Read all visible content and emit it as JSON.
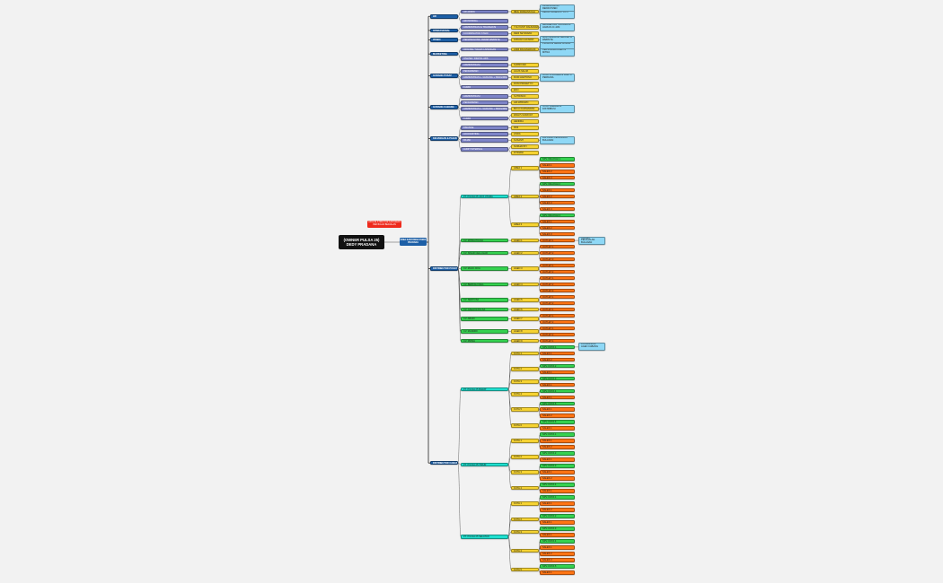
{
  "root": {
    "title": "(OWNER PULSA 25) DEDY PRADANA"
  },
  "area": {
    "label": "AREA KARYAWAN PORIA PRADANA"
  },
  "notice": {
    "label": "UPDATE STRUKTUR KARYAWAN PER BULAN BERJALAN"
  },
  "colors": {
    "dept": "#1d5fa6",
    "role": "#7d84c8",
    "person": "#f6d332",
    "note": "#8fd8f6",
    "team": "#20e0cf",
    "group": "#35d150",
    "lead": "#35d150",
    "staff": "#ff7414",
    "line": "#555555",
    "trunk": "#222222"
  },
  "tree": [
    {
      "t": "dept",
      "l": "HR",
      "c": [
        {
          "t": "role",
          "l": "HR ADMIN",
          "c": [
            {
              "t": "person",
              "l": "IBNU FIRMANSYAH",
              "c": [
                {
                  "t": "note",
                  "l": "UPDATE DATA / REKRUTMEN"
                },
                {
                  "t": "note",
                  "l": "REKAP ABSENSI / CUTI"
                }
              ]
            }
          ]
        },
        {
          "t": "role",
          "l": "HR PAYROLL"
        }
      ]
    },
    {
      "t": "dept",
      "l": "OPERASIONAL",
      "c": [
        {
          "t": "role",
          "l": "ADMINISTRASI & TRANSAKSI",
          "c": [
            {
              "t": "person",
              "l": "YULIYANTI RAHMAWATI",
              "c": [
                {
                  "t": "note",
                  "l": "MENGELOLA TRANSAKSI HARIAN 24 JAM"
                }
              ]
            }
          ]
        },
        {
          "t": "role",
          "l": "KOORDINATOR STAFF",
          "c": [
            {
              "t": "person",
              "l": "DEDI SETIAWAN"
            }
          ]
        }
      ]
    },
    {
      "t": "dept",
      "l": "IT/SEO",
      "c": [
        {
          "t": "role",
          "l": "PENANGGUNG JAWAB WEBSITE",
          "c": [
            {
              "t": "person",
              "l": "FARHAN ALFARIZI",
              "c": [
                {
                  "t": "note",
                  "l": "MAINTENANCE SERVER & WEBSITE"
                }
              ]
            }
          ]
        }
      ]
    },
    {
      "t": "dept",
      "l": "MARKETING",
      "c": [
        {
          "t": "role",
          "l": "OFFLINE / SALES LAPANGAN",
          "c": [
            {
              "t": "person",
              "l": "ANDI RACHMADANI",
              "c": [
                {
                  "t": "note",
                  "l": "PROMOSI MEDIA SOSIAL"
                },
                {
                  "t": "note",
                  "l": "KERJASAMA AGEN & MITRA"
                }
              ]
            }
          ]
        },
        {
          "t": "role",
          "l": "ONLINE / DIGITAL ADS"
        }
      ]
    },
    {
      "t": "dept",
      "l": "GUDANG PUSAT",
      "c": [
        {
          "t": "role",
          "l": "ADMINISTRASI",
          "c": [
            {
              "t": "person",
              "l": "SUPRIYADI"
            }
          ]
        },
        {
          "t": "role",
          "l": "PENGIRIMAN",
          "c": [
            {
              "t": "person",
              "l": "AGUS SALIM"
            }
          ]
        },
        {
          "t": "role",
          "l": "ADMINISTRASI + GUDANG + PENGIRIMAN",
          "c": [
            {
              "t": "person",
              "l": "RUDI HARTONO",
              "c": [
                {
                  "t": "note",
                  "l": "STOK VOUCHER & KARTU PERDANA"
                }
              ]
            }
          ]
        },
        {
          "t": "role",
          "l": "KURIR",
          "c": [
            {
              "t": "person",
              "l": "DONI PRASETYO"
            },
            {
              "t": "person",
              "l": "EKO"
            }
          ]
        }
      ]
    },
    {
      "t": "dept",
      "l": "GUDANG CABANG",
      "c": [
        {
          "t": "role",
          "l": "ADMINISTRASI",
          "c": [
            {
              "t": "person",
              "l": "SUTRISNO"
            }
          ]
        },
        {
          "t": "role",
          "l": "PENGIRIMAN",
          "c": [
            {
              "t": "person",
              "l": "ARI WIBOWO"
            }
          ]
        },
        {
          "t": "role",
          "l": "ADMINISTRASI + GUDANG + PENGIRIMAN",
          "c": [
            {
              "t": "person",
              "l": "BAYU KURNIAWAN",
              "c": [
                {
                  "t": "note",
                  "l": "STOK CABANG & DISTRIBUSI"
                }
              ]
            }
          ]
        },
        {
          "t": "role",
          "l": "KURIR",
          "c": [
            {
              "t": "person",
              "l": "WAHYU HIDAYAT"
            },
            {
              "t": "person",
              "l": "HENDRA"
            }
          ]
        }
      ]
    },
    {
      "t": "dept",
      "l": "KEUANGAN & PAJAK",
      "c": [
        {
          "t": "role",
          "l": "FINANCE",
          "c": [
            {
              "t": "person",
              "l": "RINI"
            }
          ]
        },
        {
          "t": "role",
          "l": "ACCOUNTING",
          "c": [
            {
              "t": "person",
              "l": "LINDA"
            }
          ]
        },
        {
          "t": "role",
          "l": "PAJAK",
          "c": [
            {
              "t": "person",
              "l": "SUSANTI",
              "c": [
                {
                  "t": "note",
                  "l": "LAPORAN KEUANGAN BULANAN"
                }
              ]
            }
          ]
        },
        {
          "t": "role",
          "l": "AUDIT INTERNAL",
          "c": [
            {
              "t": "person",
              "l": "NURHAYATI"
            },
            {
              "t": "person",
              "l": "FITRIANI"
            }
          ]
        }
      ]
    },
    {
      "t": "dept",
      "l": "DISTRIBUTOR PUSAT",
      "c": [
        {
          "t": "team",
          "l": "PT. PULSA 25 JAYA UTAMA",
          "c": [
            {
              "t": "person",
              "l": "AREA 1",
              "c": [
                {
                  "t": "lead",
                  "l": "SPV. WILAYAH 1"
                },
                {
                  "t": "staff",
                  "l": "SALES 1"
                },
                {
                  "t": "staff",
                  "l": "SALES 2"
                },
                {
                  "t": "staff",
                  "l": "SALES 3"
                }
              ]
            },
            {
              "t": "person",
              "l": "AREA 2",
              "c": [
                {
                  "t": "lead",
                  "l": "SPV. WILAYAH 2"
                },
                {
                  "t": "staff",
                  "l": "SALES 1"
                },
                {
                  "t": "staff",
                  "l": "SALES 2"
                },
                {
                  "t": "staff",
                  "l": "SALES 3"
                },
                {
                  "t": "staff",
                  "l": "SALES 4"
                }
              ]
            },
            {
              "t": "person",
              "l": "AREA 3",
              "c": [
                {
                  "t": "lead",
                  "l": "SPV. WILAYAH 3"
                },
                {
                  "t": "staff",
                  "l": "SALES 1"
                },
                {
                  "t": "staff",
                  "l": "SALES 2"
                },
                {
                  "t": "staff",
                  "l": "SALES 3"
                }
              ]
            }
          ]
        },
        {
          "t": "group",
          "l": "CV. MITRA PULSA",
          "c": [
            {
              "t": "person",
              "l": "AGEN 1",
              "c": [
                {
                  "t": "staff",
                  "l": "OUTLET 1",
                  "c": [
                    {
                      "t": "note",
                      "l": "TARGET PENJUALAN BULANAN"
                    }
                  ]
                }
              ]
            }
          ]
        },
        {
          "t": "group",
          "l": "CV. SINAR CELLULAR",
          "c": [
            {
              "t": "person",
              "l": "AGEN 2",
              "c": [
                {
                  "t": "staff",
                  "l": "OUTLET 1"
                },
                {
                  "t": "staff",
                  "l": "OUTLET 2"
                },
                {
                  "t": "staff",
                  "l": "OUTLET 3"
                }
              ]
            }
          ]
        },
        {
          "t": "group",
          "l": "CV. MAJU JAYA",
          "c": [
            {
              "t": "person",
              "l": "AGEN 3",
              "c": [
                {
                  "t": "staff",
                  "l": "OUTLET 1"
                },
                {
                  "t": "staff",
                  "l": "OUTLET 2"
                }
              ]
            }
          ]
        },
        {
          "t": "group",
          "l": "CV. BERKAH CELL",
          "c": [
            {
              "t": "person",
              "l": "AGEN 4",
              "c": [
                {
                  "t": "staff",
                  "l": "OUTLET 1"
                },
                {
                  "t": "staff",
                  "l": "OUTLET 2"
                },
                {
                  "t": "staff",
                  "l": "OUTLET 3"
                }
              ]
            }
          ]
        },
        {
          "t": "group",
          "l": "CV. SENTOSA",
          "c": [
            {
              "t": "person",
              "l": "AGEN 5",
              "c": [
                {
                  "t": "staff",
                  "l": "OUTLET 1"
                },
                {
                  "t": "staff",
                  "l": "OUTLET 2"
                }
              ]
            }
          ]
        },
        {
          "t": "group",
          "l": "CV. CAHAYA PULSA",
          "c": [
            {
              "t": "person",
              "l": "AGEN 6",
              "c": [
                {
                  "t": "staff",
                  "l": "OUTLET 1"
                }
              ]
            }
          ]
        },
        {
          "t": "group",
          "l": "CV. ABADI",
          "c": [
            {
              "t": "person",
              "l": "AGEN 7",
              "c": [
                {
                  "t": "staff",
                  "l": "OUTLET 1"
                },
                {
                  "t": "staff",
                  "l": "OUTLET 2"
                }
              ]
            }
          ]
        },
        {
          "t": "group",
          "l": "CV. MANDIRI",
          "c": [
            {
              "t": "person",
              "l": "AGEN 8",
              "c": [
                {
                  "t": "staff",
                  "l": "OUTLET 1"
                },
                {
                  "t": "staff",
                  "l": "OUTLET 2"
                }
              ]
            }
          ]
        },
        {
          "t": "group",
          "l": "CV. PRIMA",
          "c": [
            {
              "t": "person",
              "l": "AGEN 9",
              "c": [
                {
                  "t": "staff",
                  "l": "OUTLET 1"
                }
              ]
            }
          ]
        }
      ]
    },
    {
      "t": "dept",
      "l": "DISTRIBUTOR CABANG",
      "c": [
        {
          "t": "team",
          "l": "PT. PULSA 25 BARAT",
          "c": [
            {
              "t": "person",
              "l": "KOTA 1",
              "c": [
                {
                  "t": "lead",
                  "l": "SPV. KOTA 1",
                  "c": [
                    {
                      "t": "note",
                      "l": "KOORDINASI AGEN CABANG"
                    }
                  ]
                },
                {
                  "t": "staff",
                  "l": "SALES 1"
                },
                {
                  "t": "staff",
                  "l": "SALES 2"
                }
              ]
            },
            {
              "t": "person",
              "l": "KOTA 2",
              "c": [
                {
                  "t": "lead",
                  "l": "SPV. KOTA 2"
                },
                {
                  "t": "staff",
                  "l": "SALES 1"
                }
              ]
            },
            {
              "t": "person",
              "l": "KOTA 3",
              "c": [
                {
                  "t": "lead",
                  "l": "SPV. KOTA 3"
                },
                {
                  "t": "staff",
                  "l": "SALES 1"
                }
              ]
            },
            {
              "t": "person",
              "l": "KOTA 4",
              "c": [
                {
                  "t": "lead",
                  "l": "SPV. KOTA 4"
                },
                {
                  "t": "staff",
                  "l": "SALES 1"
                }
              ]
            },
            {
              "t": "person",
              "l": "KOTA 5",
              "c": [
                {
                  "t": "lead",
                  "l": "SPV. KOTA 5"
                },
                {
                  "t": "staff",
                  "l": "SALES 1"
                },
                {
                  "t": "staff",
                  "l": "SALES 2"
                }
              ]
            },
            {
              "t": "person",
              "l": "KOTA 6",
              "c": [
                {
                  "t": "lead",
                  "l": "SPV. KOTA 6"
                },
                {
                  "t": "staff",
                  "l": "SALES 1"
                }
              ]
            }
          ]
        },
        {
          "t": "team",
          "l": "PT. PULSA 25 TIMUR",
          "c": [
            {
              "t": "person",
              "l": "KOTA 1",
              "c": [
                {
                  "t": "lead",
                  "l": "SPV. KOTA 1"
                },
                {
                  "t": "staff",
                  "l": "SALES 1"
                },
                {
                  "t": "staff",
                  "l": "SALES 2"
                }
              ]
            },
            {
              "t": "person",
              "l": "KOTA 2",
              "c": [
                {
                  "t": "lead",
                  "l": "SPV. KOTA 2"
                },
                {
                  "t": "staff",
                  "l": "SALES 1"
                }
              ]
            },
            {
              "t": "person",
              "l": "KOTA 3",
              "c": [
                {
                  "t": "lead",
                  "l": "SPV. KOTA 3"
                },
                {
                  "t": "staff",
                  "l": "SALES 1"
                },
                {
                  "t": "staff",
                  "l": "SALES 2"
                }
              ]
            },
            {
              "t": "person",
              "l": "KOTA 4",
              "c": [
                {
                  "t": "lead",
                  "l": "SPV. KOTA 4"
                },
                {
                  "t": "staff",
                  "l": "SALES 1"
                }
              ]
            }
          ]
        },
        {
          "t": "team",
          "l": "PT. PULSA 25 SELATAN",
          "c": [
            {
              "t": "person",
              "l": "KOTA 1",
              "c": [
                {
                  "t": "lead",
                  "l": "SPV. KOTA 1"
                },
                {
                  "t": "staff",
                  "l": "SALES 1"
                },
                {
                  "t": "staff",
                  "l": "SALES 2"
                }
              ]
            },
            {
              "t": "person",
              "l": "KOTA 2",
              "c": [
                {
                  "t": "lead",
                  "l": "SPV. KOTA 2"
                },
                {
                  "t": "staff",
                  "l": "SALES 1"
                }
              ]
            },
            {
              "t": "person",
              "l": "KOTA 3",
              "c": [
                {
                  "t": "lead",
                  "l": "SPV. KOTA 3"
                },
                {
                  "t": "staff",
                  "l": "SALES 1"
                }
              ]
            },
            {
              "t": "person",
              "l": "KOTA 4",
              "c": [
                {
                  "t": "lead",
                  "l": "SPV. KOTA 4"
                },
                {
                  "t": "staff",
                  "l": "SALES 1"
                },
                {
                  "t": "staff",
                  "l": "SALES 2"
                },
                {
                  "t": "staff",
                  "l": "SALES 3"
                }
              ]
            },
            {
              "t": "person",
              "l": "KOTA 5",
              "c": [
                {
                  "t": "lead",
                  "l": "SPV. KOTA 5"
                },
                {
                  "t": "staff",
                  "l": "SALES 1"
                }
              ]
            }
          ]
        }
      ]
    }
  ]
}
